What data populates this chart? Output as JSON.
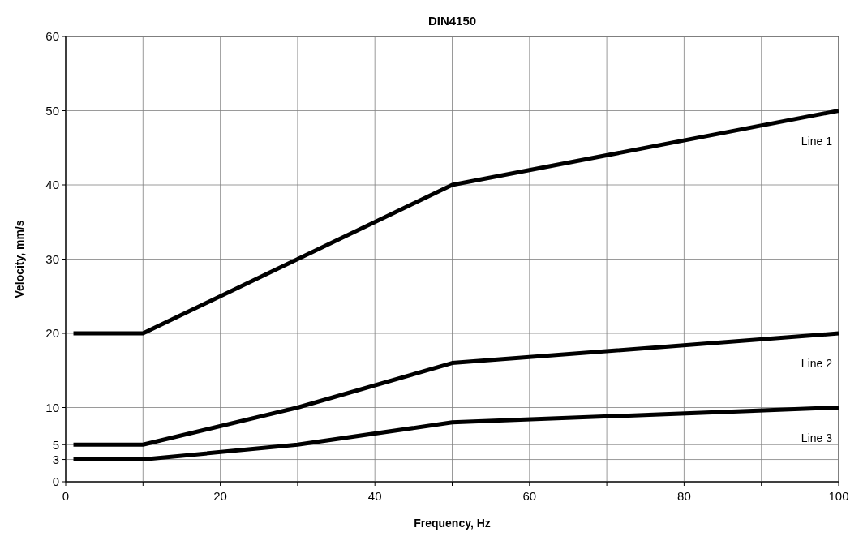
{
  "chart_data": {
    "type": "line",
    "title": "DIN4150",
    "xlabel": "Frequency, Hz",
    "ylabel": "Velocity, mm/s",
    "xlim": [
      0,
      100
    ],
    "xticks": [
      0,
      {
        "value": 10,
        "label": null
      },
      20,
      {
        "value": 30,
        "label": null
      },
      40,
      {
        "value": 50,
        "label": null
      },
      60,
      {
        "value": 70,
        "label": null
      },
      80,
      {
        "value": 90,
        "label": null
      },
      100
    ],
    "ylim": [
      0,
      60
    ],
    "yticks": [
      0,
      3,
      5,
      10,
      20,
      30,
      40,
      50,
      60
    ],
    "grid": true,
    "marker": "none",
    "line_style": "solid",
    "series": [
      {
        "name": "Line 1",
        "color": "#000000",
        "x": [
          1,
          10,
          30,
          50,
          100
        ],
        "values": [
          20,
          20,
          30,
          40,
          50
        ]
      },
      {
        "name": "Line 2",
        "color": "#000000",
        "x": [
          1,
          10,
          30,
          50,
          100
        ],
        "values": [
          5,
          5,
          10,
          16,
          20
        ]
      },
      {
        "name": "Line 3",
        "color": "#000000",
        "x": [
          1,
          10,
          30,
          50,
          100
        ],
        "values": [
          3,
          3,
          5,
          8,
          10
        ]
      }
    ]
  }
}
